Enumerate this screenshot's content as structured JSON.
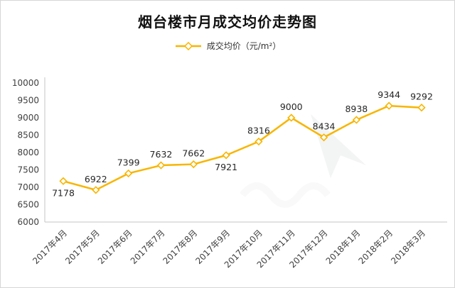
{
  "title": "烟台楼市月成交均价走势图",
  "legend": {
    "label": "成交均价（元/m²）"
  },
  "chart_data": {
    "type": "line",
    "title": "烟台楼市月成交均价走势图",
    "series_name": "成交均价",
    "unit": "元/m²",
    "categories": [
      "2017年4月",
      "2017年5月",
      "2017年6月",
      "2017年7月",
      "2017年8月",
      "2017年9月",
      "2017年10月",
      "2017年11月",
      "2017年12月",
      "2018年1月",
      "2018年2月",
      "2018年3月"
    ],
    "values": [
      7178,
      6922,
      7399,
      7632,
      7662,
      7921,
      8316,
      9000,
      8434,
      8938,
      9344,
      9292
    ],
    "ylim": [
      6000,
      10000
    ],
    "yticks": [
      6000,
      6500,
      7000,
      7500,
      8000,
      8500,
      9000,
      9500,
      10000
    ],
    "xlabel": "",
    "ylabel": "",
    "grid": false,
    "legend_position": "top",
    "line_color": "#F8B500",
    "marker": "diamond",
    "marker_fill": "#ffffff",
    "axis_color": "#c4c4c4",
    "label_below_indices": [
      0,
      5
    ]
  }
}
